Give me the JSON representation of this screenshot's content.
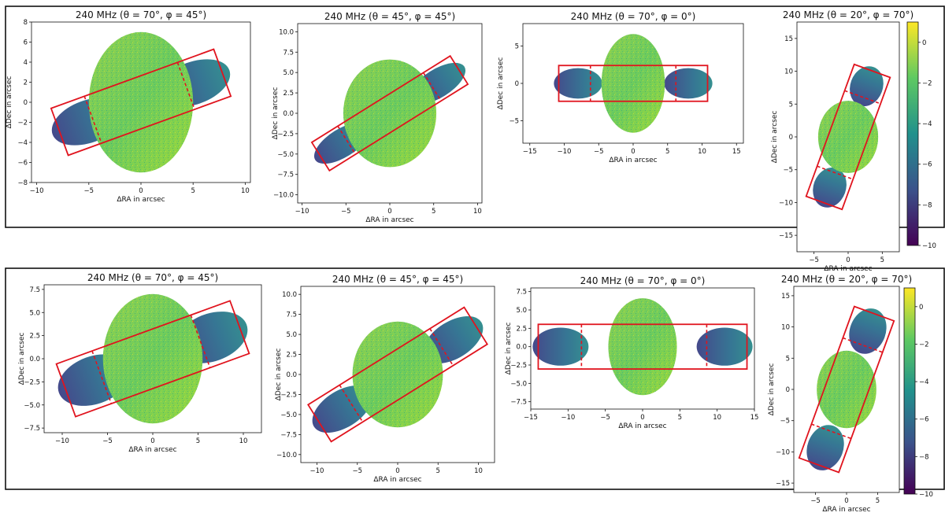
{
  "colorbar": {
    "ticks": [
      0,
      -2,
      -4,
      -6,
      -8,
      -10
    ],
    "range": [
      -10,
      1
    ],
    "colormap": [
      "#440154",
      "#3b528b",
      "#21918c",
      "#5ec962",
      "#fde725"
    ]
  },
  "chart_data": [
    {
      "type": "heatmap",
      "row": 0,
      "title": "240 MHz (θ = 70°, φ = 45°)",
      "xlabel": "ΔRA in arcsec",
      "ylabel": "ΔDec in arcsec",
      "xlim": [
        -10.5,
        10.5
      ],
      "ylim": [
        -8,
        8
      ],
      "xticks": [
        -10,
        -5,
        0,
        5,
        10
      ],
      "yticks": [
        8,
        6,
        4,
        2,
        0,
        -2,
        -4,
        -6,
        -8
      ]
    },
    {
      "type": "heatmap",
      "row": 0,
      "title": "240 MHz (θ = 45°, φ = 45°)",
      "xlabel": "ΔRA in arcsec",
      "ylabel": "ΔDec in arcsec",
      "xlim": [
        -10.5,
        10.5
      ],
      "ylim": [
        -11,
        11
      ],
      "xticks": [
        -10,
        -5,
        0,
        5,
        10
      ],
      "yticks": [
        10.0,
        7.5,
        5.0,
        2.5,
        0.0,
        -2.5,
        -5.0,
        -7.5,
        -10.0
      ]
    },
    {
      "type": "heatmap",
      "row": 0,
      "title": "240 MHz (θ = 70°, φ = 0°)",
      "xlabel": "ΔRA in arcsec",
      "ylabel": "ΔDec in arcsec",
      "xlim": [
        -16,
        16
      ],
      "ylim": [
        -8,
        8
      ],
      "xticks": [
        -15,
        -10,
        -5,
        0,
        5,
        10,
        15
      ],
      "yticks": [
        5,
        0,
        -5
      ]
    },
    {
      "type": "heatmap",
      "row": 0,
      "title": "240 MHz (θ = 20°, φ = 70°)",
      "xlabel": "ΔRA in arcsec",
      "ylabel": "ΔDec in arcsec",
      "xlim": [
        -7.5,
        7.5
      ],
      "ylim": [
        -17.5,
        17.5
      ],
      "xticks": [
        -5,
        0,
        5
      ],
      "yticks": [
        15,
        10,
        5,
        0,
        -5,
        -10,
        -15
      ]
    },
    {
      "type": "heatmap",
      "row": 1,
      "title": "240 MHz (θ = 70°, φ = 45°)",
      "xlabel": "ΔRA in arcsec",
      "ylabel": "ΔDec in arcsec",
      "xlim": [
        -12,
        12
      ],
      "ylim": [
        -8,
        8
      ],
      "xticks": [
        -10,
        -5,
        0,
        5,
        10
      ],
      "yticks": [
        7.5,
        5.0,
        2.5,
        0.0,
        -2.5,
        -5.0,
        -7.5
      ]
    },
    {
      "type": "heatmap",
      "row": 1,
      "title": "240 MHz (θ = 45°, φ = 45°)",
      "xlabel": "ΔRA in arcsec",
      "ylabel": "ΔDec in arcsec",
      "xlim": [
        -12,
        12
      ],
      "ylim": [
        -11,
        11
      ],
      "xticks": [
        -10,
        -5,
        0,
        5,
        10
      ],
      "yticks": [
        10.0,
        7.5,
        5.0,
        2.5,
        0.0,
        -2.5,
        -5.0,
        -7.5,
        -10.0
      ]
    },
    {
      "type": "heatmap",
      "row": 1,
      "title": "240 MHz (θ = 70°, φ = 0°)",
      "xlabel": "ΔRA in arcsec",
      "ylabel": "ΔDec in arcsec",
      "xlim": [
        -15,
        15
      ],
      "ylim": [
        -8.5,
        8
      ],
      "xticks": [
        -15,
        -10,
        -5,
        0,
        5,
        10,
        15
      ],
      "yticks": [
        7.5,
        5.0,
        2.5,
        0.0,
        -2.5,
        -5.0,
        -7.5
      ]
    },
    {
      "type": "heatmap",
      "row": 1,
      "title": "240 MHz (θ = 20°, φ = 70°)",
      "xlabel": "ΔRA in arcsec",
      "ylabel": "ΔDec in arcsec",
      "xlim": [
        -8.5,
        8.5
      ],
      "ylim": [
        -16.5,
        16.5
      ],
      "xticks": [
        -5,
        0,
        5
      ],
      "yticks": [
        15,
        10,
        5,
        0,
        -5,
        -10,
        -15
      ]
    }
  ]
}
